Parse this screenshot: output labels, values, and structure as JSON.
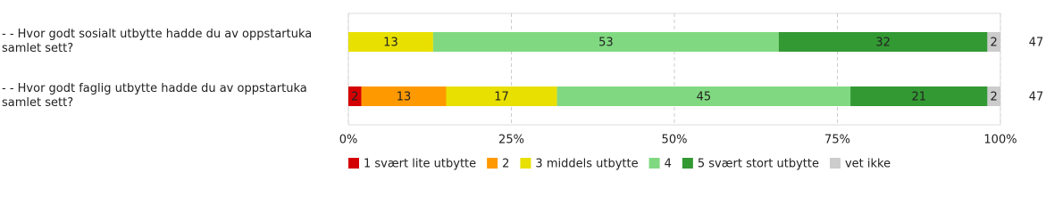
{
  "chart_data": {
    "type": "stacked-bar-horizontal",
    "categories": [
      "- - Hvor godt sosialt utbytte hadde du av oppstartuka samlet sett?",
      "- - Hvor godt faglig utbytte hadde du av oppstartuka samlet sett?"
    ],
    "series": [
      {
        "name": "1 svært lite utbytte",
        "color": "#d40000",
        "values": [
          null,
          2
        ]
      },
      {
        "name": "2",
        "color": "#ff9900",
        "values": [
          null,
          13
        ]
      },
      {
        "name": "3 middels utbytte",
        "color": "#e8e000",
        "values": [
          13,
          17
        ]
      },
      {
        "name": "4",
        "color": "#80d980",
        "values": [
          53,
          45
        ]
      },
      {
        "name": "5 svært stort utbytte",
        "color": "#339933",
        "values": [
          32,
          21
        ]
      },
      {
        "name": "vet ikke",
        "color": "#cccccc",
        "values": [
          2,
          2
        ]
      }
    ],
    "counts": [
      47,
      47
    ],
    "xlim": [
      0,
      100
    ],
    "xticks": [
      {
        "value": 0,
        "label": "0%"
      },
      {
        "value": 25,
        "label": "25%"
      },
      {
        "value": 50,
        "label": "50%"
      },
      {
        "value": 75,
        "label": "75%"
      },
      {
        "value": 100,
        "label": "100%"
      }
    ],
    "grid": true
  }
}
